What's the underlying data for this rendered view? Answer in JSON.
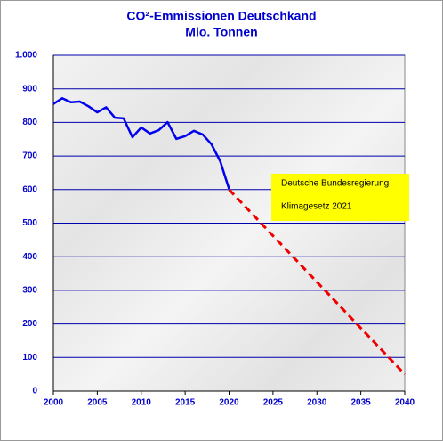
{
  "chart_data": {
    "type": "line",
    "title": "CO²-Emmissionen Deutschkand",
    "subtitle": "Mio. Tonnen",
    "annotation": [
      "Deutsche Bundesregierung",
      "Klimagesetz 2021"
    ],
    "series": [
      {
        "color": "#0000ee",
        "style": "solid",
        "x": [
          2000,
          2001,
          2002,
          2003,
          2004,
          2005,
          2006,
          2007,
          2008,
          2009,
          2010,
          2011,
          2012,
          2013,
          2014,
          2015,
          2016,
          2017,
          2018,
          2019,
          2020
        ],
        "values": [
          855,
          872,
          860,
          862,
          848,
          830,
          845,
          814,
          812,
          756,
          785,
          767,
          777,
          801,
          751,
          759,
          775,
          764,
          735,
          684,
          602
        ]
      },
      {
        "color": "#ee0000",
        "style": "dashed",
        "x": [
          2020,
          2040
        ],
        "values": [
          600,
          50
        ]
      }
    ],
    "xlim": [
      2000,
      2040
    ],
    "xticks": [
      2000,
      2005,
      2010,
      2015,
      2020,
      2025,
      2030,
      2035,
      2040
    ],
    "ylim": [
      0,
      1000
    ],
    "yticks": [
      0,
      100,
      200,
      300,
      400,
      500,
      600,
      700,
      800,
      900,
      {
        "value": 1000,
        "label": "1.000"
      }
    ],
    "grid": true,
    "grid_color": "#0000aa"
  }
}
